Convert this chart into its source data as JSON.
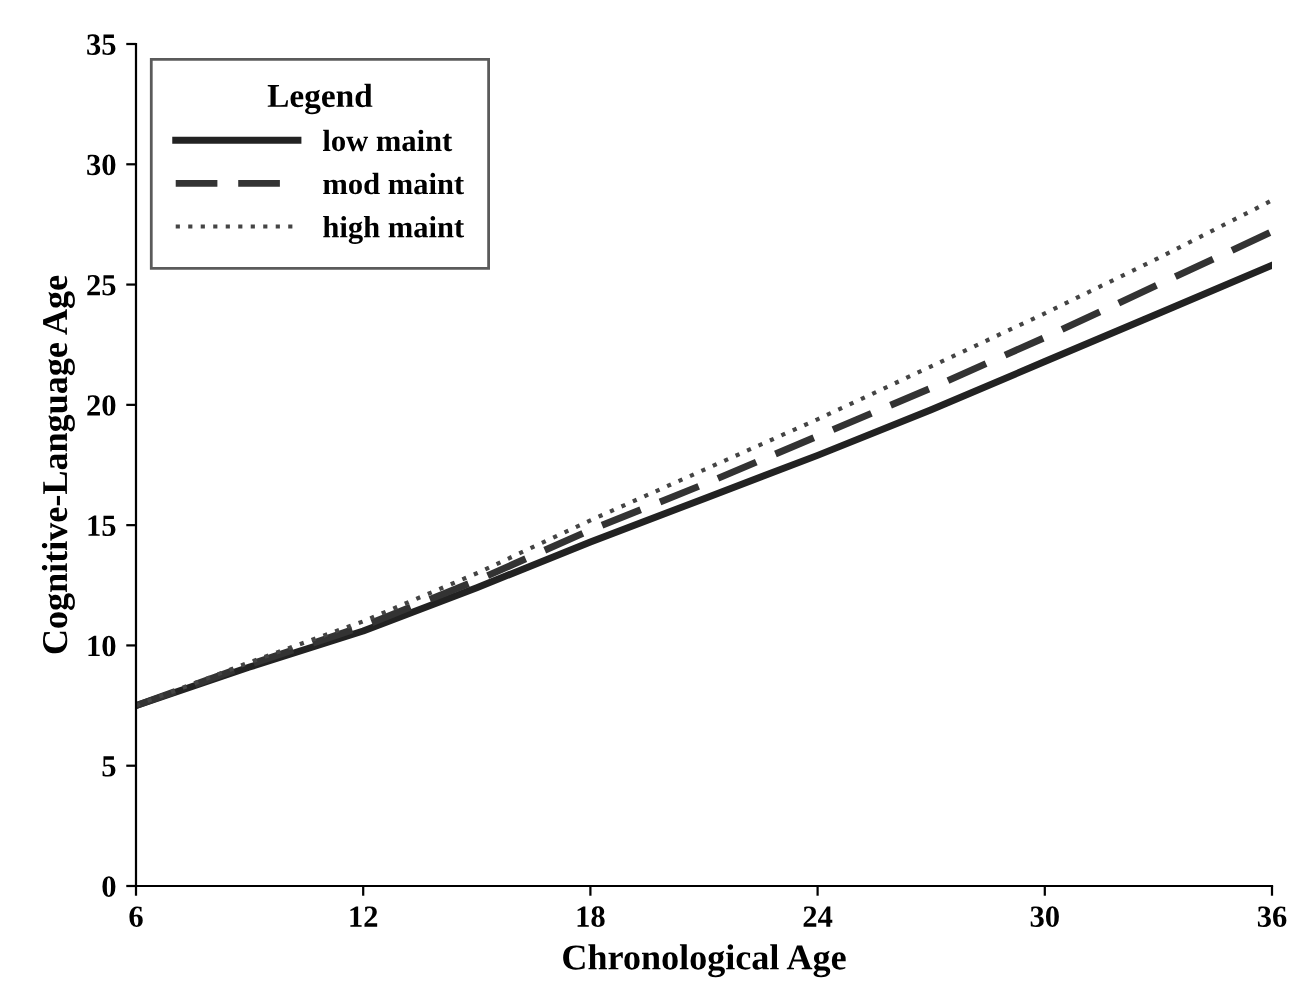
{
  "chart_data": {
    "type": "line",
    "xlabel": "Chronological Age",
    "ylabel": "Cognitive-Language Age",
    "legend_title": "Legend",
    "x": [
      6,
      9,
      12,
      15,
      18,
      21,
      24,
      27,
      30,
      33,
      36
    ],
    "series": [
      {
        "name": "low maint",
        "color": "#222222",
        "line_style": "solid",
        "values": [
          7.5,
          9.1,
          10.6,
          12.4,
          14.3,
          16.1,
          17.9,
          19.8,
          21.8,
          23.8,
          25.8
        ]
      },
      {
        "name": "mod maint",
        "color": "#333333",
        "line_style": "dashed",
        "values": [
          7.5,
          9.2,
          10.8,
          12.7,
          14.8,
          16.7,
          18.7,
          20.7,
          22.8,
          25.0,
          27.2
        ]
      },
      {
        "name": "high maint",
        "color": "#444444",
        "line_style": "dotted",
        "values": [
          7.5,
          9.3,
          11.0,
          13.0,
          15.2,
          17.3,
          19.4,
          21.6,
          23.8,
          26.1,
          28.5
        ]
      }
    ],
    "xlim": [
      6,
      36
    ],
    "xticks": [
      6,
      12,
      18,
      24,
      30,
      36
    ],
    "ylim": [
      0,
      35
    ],
    "yticks": [
      0,
      5,
      10,
      15,
      20,
      25,
      30,
      35
    ],
    "grid": false,
    "legend": "top left",
    "marker": "none"
  }
}
